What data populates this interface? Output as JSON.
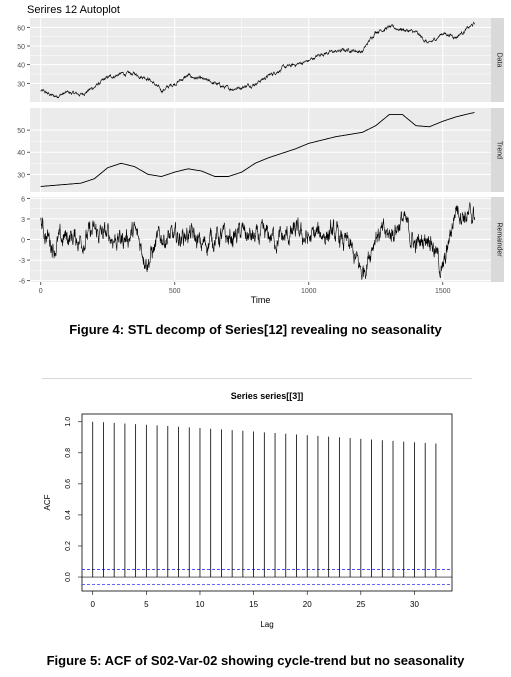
{
  "figure4": {
    "plot_title": "Serires 12 Autoplot",
    "caption": "Figure 4: STL decomp of Series[12] revealing no seasonality"
  },
  "figure5": {
    "caption": "Figure 5: ACF of S02-Var-02 showing cycle-trend but no seasonality"
  },
  "colors": {
    "panel_bg": "#ebebeb",
    "strip_bg": "#d9d9d9",
    "grid": "#ffffff",
    "line": "#000000",
    "ci_line": "#3333ff",
    "acf_bar": "#000000"
  },
  "chart_data": [
    {
      "type": "line",
      "title": "Serires 12 Autoplot",
      "xlabel": "Time",
      "x_ticks": [
        0,
        500,
        1000,
        1500
      ],
      "xlim": [
        -40,
        1680
      ],
      "n_points": 1620,
      "panels": [
        {
          "name": "Data",
          "ylim": [
            20,
            65
          ],
          "y_ticks": [
            30,
            40,
            50,
            60
          ],
          "x": [
            0,
            50,
            100,
            150,
            200,
            250,
            300,
            350,
            400,
            450,
            500,
            550,
            600,
            650,
            700,
            750,
            800,
            850,
            900,
            950,
            1000,
            1050,
            1100,
            1150,
            1200,
            1250,
            1300,
            1350,
            1400,
            1450,
            1500,
            1550,
            1600,
            1620
          ],
          "y": [
            26,
            23,
            25,
            24,
            28,
            33,
            35,
            35,
            33,
            26,
            30,
            34,
            32,
            30,
            27,
            28,
            30,
            34,
            38,
            40,
            42,
            46,
            47,
            48,
            47,
            58,
            60,
            59,
            57,
            51,
            57,
            55,
            60,
            62
          ]
        },
        {
          "name": "Trend",
          "ylim": [
            22,
            60
          ],
          "y_ticks": [
            30,
            40,
            50
          ],
          "x": [
            0,
            50,
            100,
            150,
            200,
            250,
            300,
            350,
            400,
            450,
            500,
            550,
            600,
            650,
            700,
            750,
            800,
            850,
            900,
            950,
            1000,
            1050,
            1100,
            1150,
            1200,
            1250,
            1300,
            1350,
            1400,
            1450,
            1500,
            1550,
            1600,
            1620
          ],
          "y": [
            24.5,
            25,
            25.5,
            26,
            28,
            33,
            35,
            33.5,
            30,
            29,
            31,
            32.5,
            31.5,
            29,
            29,
            31,
            35,
            37.5,
            39.5,
            41.5,
            44,
            45.5,
            47,
            48,
            49,
            52,
            57,
            57,
            52,
            51.5,
            54,
            56,
            57.5,
            58
          ]
        },
        {
          "name": "Remainder",
          "ylim": [
            -6.2,
            6.2
          ],
          "y_ticks": [
            -6,
            -3,
            0,
            3,
            6
          ],
          "x": [
            0,
            50,
            100,
            150,
            200,
            250,
            300,
            350,
            400,
            450,
            500,
            550,
            600,
            650,
            700,
            750,
            800,
            850,
            900,
            950,
            1000,
            1050,
            1100,
            1150,
            1200,
            1250,
            1300,
            1350,
            1400,
            1450,
            1500,
            1550,
            1600,
            1620
          ],
          "y": [
            2,
            -1,
            0.5,
            0,
            1,
            0.5,
            0,
            1,
            -3,
            0.5,
            0,
            1,
            -1,
            0.5,
            0,
            1,
            0,
            0.5,
            0,
            1,
            0,
            1,
            0.5,
            -1,
            -5,
            1,
            0.5,
            3,
            -1,
            1,
            -5,
            5,
            3,
            4
          ]
        }
      ]
    },
    {
      "type": "bar",
      "title": "Series  series[[3]]",
      "xlabel": "Lag",
      "ylabel": "ACF",
      "x": [
        0,
        1,
        2,
        3,
        4,
        5,
        6,
        7,
        8,
        9,
        10,
        11,
        12,
        13,
        14,
        15,
        16,
        17,
        18,
        19,
        20,
        21,
        22,
        23,
        24,
        25,
        26,
        27,
        28,
        29,
        30,
        31,
        32
      ],
      "values": [
        1.0,
        0.997,
        0.993,
        0.989,
        0.985,
        0.981,
        0.977,
        0.973,
        0.968,
        0.964,
        0.96,
        0.955,
        0.951,
        0.946,
        0.942,
        0.937,
        0.932,
        0.928,
        0.923,
        0.918,
        0.914,
        0.909,
        0.904,
        0.9,
        0.895,
        0.89,
        0.886,
        0.881,
        0.877,
        0.872,
        0.868,
        0.864,
        0.86
      ],
      "ci": 0.049,
      "xlim": [
        -1,
        33.5
      ],
      "ylim": [
        -0.09,
        1.05
      ],
      "x_ticks": [
        0,
        5,
        10,
        15,
        20,
        25,
        30
      ],
      "y_ticks": [
        0.0,
        0.2,
        0.4,
        0.6,
        0.8,
        1.0
      ]
    }
  ]
}
